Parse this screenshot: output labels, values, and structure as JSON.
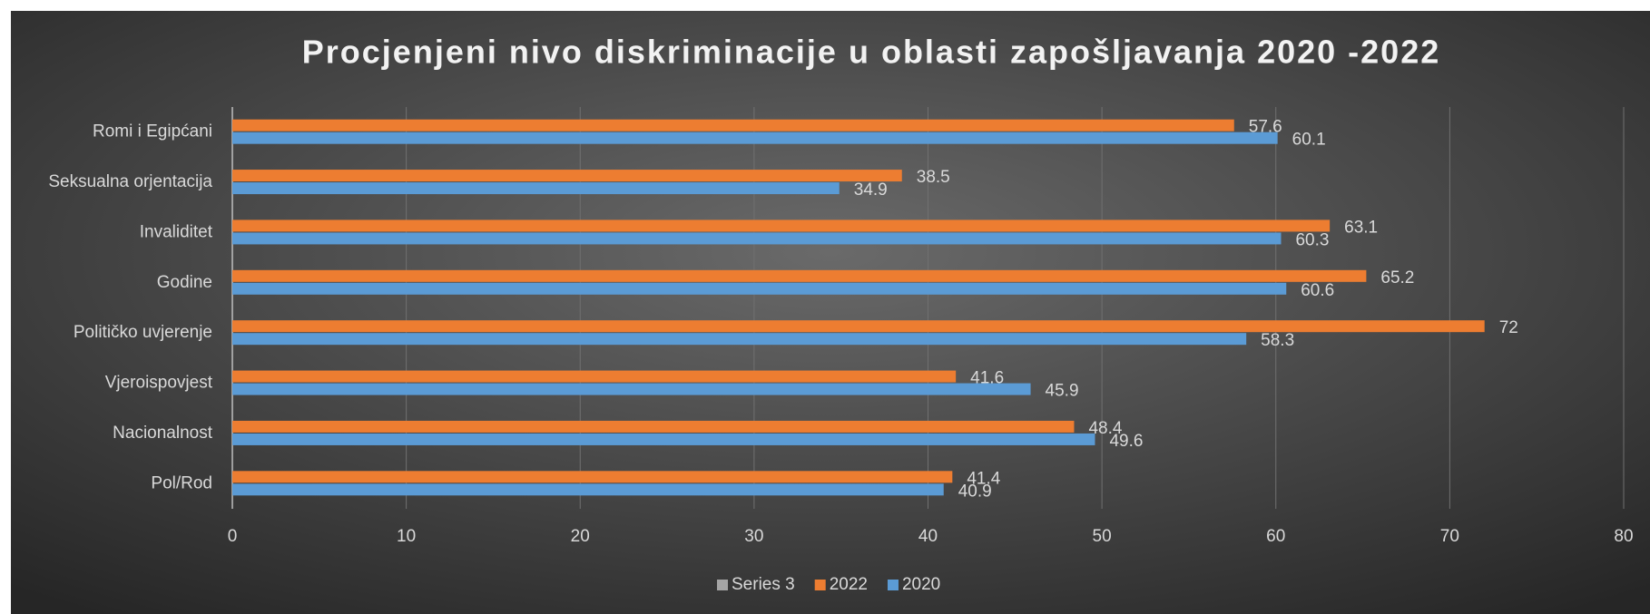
{
  "chart_data": {
    "type": "hbar",
    "title": "Procjenjeni nivo diskriminacije u oblasti zapošljavanja 2020 -2022",
    "categories": [
      "Romi i Egipćani",
      "Seksualna orjentacija",
      "Invaliditet",
      "Godine",
      "Političko uvjerenje",
      "Vjeroispovjest",
      "Nacionalnost",
      "Pol/Rod"
    ],
    "series": [
      {
        "name": "Series 3",
        "color": "#a5a5a5",
        "values": [
          null,
          null,
          null,
          null,
          null,
          null,
          null,
          null
        ]
      },
      {
        "name": "2022",
        "color": "#ed7d31",
        "values": [
          57.6,
          38.5,
          63.1,
          65.2,
          72,
          41.6,
          48.4,
          41.4
        ]
      },
      {
        "name": "2020",
        "color": "#5b9bd5",
        "values": [
          60.1,
          34.9,
          60.3,
          60.6,
          58.3,
          45.9,
          49.6,
          40.9
        ]
      }
    ],
    "xlim": [
      0,
      80
    ],
    "xticks": [
      0,
      10,
      20,
      30,
      40,
      50,
      60,
      70,
      80
    ],
    "grid": true,
    "legend": "bottom"
  }
}
